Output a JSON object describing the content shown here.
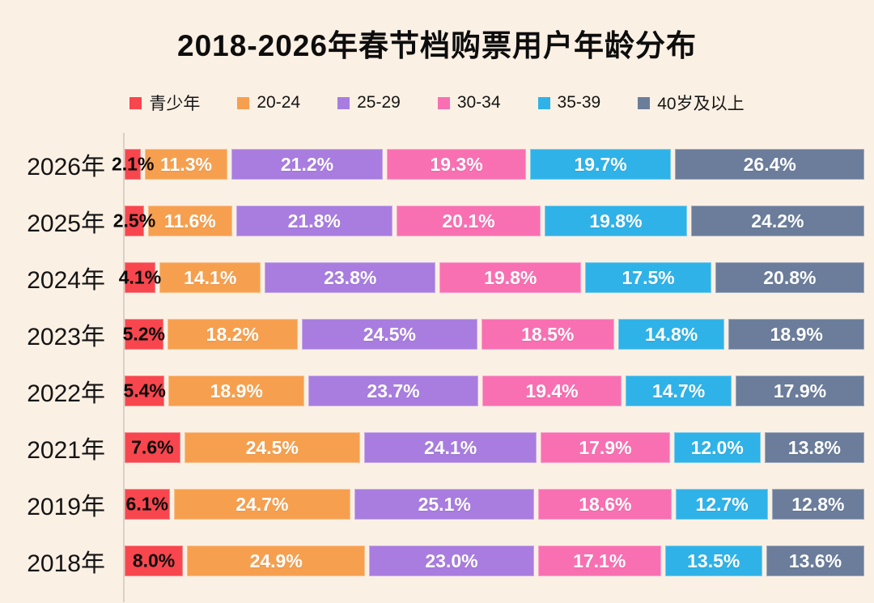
{
  "title": "2018-2026年春节档购票用户年龄分布",
  "background_color": "#fbf0e4",
  "axis_color": "#d9d1c6",
  "chart_data": {
    "type": "bar",
    "stacked": true,
    "orientation": "horizontal",
    "title": "2018-2026年春节档购票用户年龄分布",
    "legend_position": "top",
    "value_suffix": "%",
    "xlim": [
      0,
      100
    ],
    "grid": false,
    "categories": [
      "2026年",
      "2025年",
      "2024年",
      "2023年",
      "2022年",
      "2021年",
      "2019年",
      "2018年"
    ],
    "series": [
      {
        "name": "青少年",
        "color": "#f8464e",
        "label_color": "#0b0b0b",
        "values": [
          2.1,
          2.5,
          4.1,
          5.2,
          5.4,
          7.6,
          6.1,
          8.0
        ]
      },
      {
        "name": "20-24",
        "color": "#f6a04f",
        "label_color": "#ffffff",
        "values": [
          11.3,
          11.6,
          14.1,
          18.2,
          18.9,
          24.5,
          24.7,
          24.9
        ]
      },
      {
        "name": "25-29",
        "color": "#a87ddf",
        "label_color": "#ffffff",
        "values": [
          21.2,
          21.8,
          23.8,
          24.5,
          23.7,
          24.1,
          25.1,
          23.0
        ]
      },
      {
        "name": "30-34",
        "color": "#f870b2",
        "label_color": "#ffffff",
        "values": [
          19.3,
          20.1,
          19.8,
          18.5,
          19.4,
          17.9,
          18.6,
          17.1
        ]
      },
      {
        "name": "35-39",
        "color": "#2fb2e8",
        "label_color": "#ffffff",
        "values": [
          19.7,
          19.8,
          17.5,
          14.8,
          14.7,
          12.0,
          12.7,
          13.5
        ]
      },
      {
        "name": "40岁及以上",
        "color": "#6b7d9b",
        "label_color": "#ffffff",
        "values": [
          26.4,
          24.2,
          20.8,
          18.9,
          17.9,
          13.8,
          12.8,
          13.6
        ]
      }
    ]
  }
}
